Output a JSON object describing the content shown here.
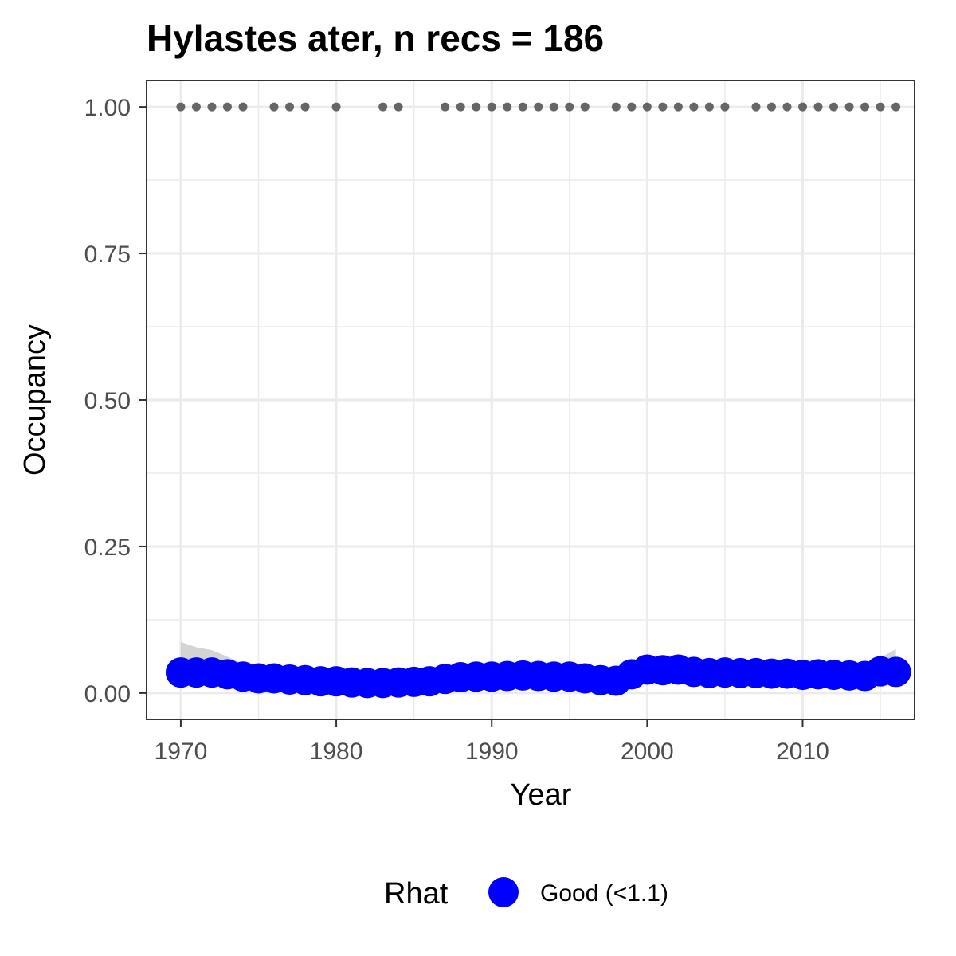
{
  "chart_data": {
    "type": "scatter",
    "title": "Hylastes ater, n recs = 186",
    "xlabel": "Year",
    "ylabel": "Occupancy",
    "xlim": [
      1967.8,
      2017.2
    ],
    "ylim": [
      -0.045,
      1.045
    ],
    "x_ticks": [
      1970,
      1980,
      1990,
      2000,
      2010
    ],
    "x_tick_labels": [
      "1970",
      "1980",
      "1990",
      "2000",
      "2010"
    ],
    "y_ticks": [
      0,
      0.25,
      0.5,
      0.75,
      1.0
    ],
    "y_tick_labels": [
      "0.00",
      "0.25",
      "0.50",
      "0.75",
      "1.00"
    ],
    "grid": true,
    "legend": {
      "position": "bottom",
      "title": "Rhat",
      "entries": [
        {
          "label": "Good (<1.1)",
          "color": "#0000ff"
        }
      ]
    },
    "colors": {
      "occupancy": "#0000ff",
      "records": "#666666",
      "ribbon": "#cccccc",
      "grid": "#ebebeb",
      "border": "#333333"
    },
    "series": [
      {
        "name": "Good (<1.1)",
        "x": [
          1970,
          1971,
          1972,
          1973,
          1974,
          1975,
          1976,
          1977,
          1978,
          1979,
          1980,
          1981,
          1982,
          1983,
          1984,
          1985,
          1986,
          1987,
          1988,
          1989,
          1990,
          1991,
          1992,
          1993,
          1994,
          1995,
          1996,
          1997,
          1998,
          1999,
          2000,
          2001,
          2002,
          2003,
          2004,
          2005,
          2006,
          2007,
          2008,
          2009,
          2010,
          2011,
          2012,
          2013,
          2014,
          2015,
          2016
        ],
        "y": [
          0.035,
          0.035,
          0.035,
          0.032,
          0.028,
          0.025,
          0.025,
          0.023,
          0.022,
          0.02,
          0.02,
          0.018,
          0.017,
          0.017,
          0.018,
          0.019,
          0.02,
          0.024,
          0.027,
          0.028,
          0.028,
          0.029,
          0.03,
          0.029,
          0.028,
          0.028,
          0.025,
          0.022,
          0.021,
          0.032,
          0.04,
          0.039,
          0.04,
          0.036,
          0.034,
          0.035,
          0.034,
          0.034,
          0.033,
          0.033,
          0.031,
          0.032,
          0.031,
          0.03,
          0.029,
          0.037,
          0.036
        ]
      }
    ],
    "ribbon": {
      "x": [
        1970,
        1971,
        1972,
        1973,
        1974,
        1975,
        1976,
        1977,
        1978,
        1979,
        1980,
        1981,
        1982,
        1983,
        1984,
        1985,
        1986,
        1987,
        1988,
        1989,
        1990,
        1991,
        1992,
        1993,
        1994,
        1995,
        1996,
        1997,
        1998,
        1999,
        2000,
        2001,
        2002,
        2003,
        2004,
        2005,
        2006,
        2007,
        2008,
        2009,
        2010,
        2011,
        2012,
        2013,
        2014,
        2015,
        2016
      ],
      "lower": [
        0.015,
        0.017,
        0.018,
        0.017,
        0.014,
        0.012,
        0.012,
        0.011,
        0.01,
        0.009,
        0.009,
        0.008,
        0.007,
        0.007,
        0.008,
        0.009,
        0.01,
        0.013,
        0.015,
        0.016,
        0.016,
        0.017,
        0.018,
        0.017,
        0.016,
        0.016,
        0.014,
        0.012,
        0.011,
        0.019,
        0.026,
        0.025,
        0.026,
        0.023,
        0.021,
        0.022,
        0.021,
        0.021,
        0.02,
        0.02,
        0.019,
        0.02,
        0.019,
        0.018,
        0.017,
        0.021,
        0.018
      ],
      "upper": [
        0.087,
        0.078,
        0.073,
        0.062,
        0.05,
        0.043,
        0.042,
        0.039,
        0.037,
        0.035,
        0.035,
        0.032,
        0.031,
        0.031,
        0.032,
        0.034,
        0.036,
        0.04,
        0.043,
        0.044,
        0.044,
        0.045,
        0.046,
        0.045,
        0.044,
        0.044,
        0.041,
        0.037,
        0.036,
        0.048,
        0.058,
        0.057,
        0.058,
        0.053,
        0.051,
        0.052,
        0.051,
        0.051,
        0.05,
        0.05,
        0.048,
        0.049,
        0.048,
        0.047,
        0.047,
        0.06,
        0.075
      ]
    },
    "records": {
      "x": [
        1970,
        1971,
        1972,
        1973,
        1974,
        1976,
        1977,
        1978,
        1980,
        1983,
        1984,
        1987,
        1988,
        1989,
        1990,
        1991,
        1992,
        1993,
        1994,
        1995,
        1996,
        1998,
        1999,
        2000,
        2001,
        2002,
        2003,
        2004,
        2005,
        2007,
        2008,
        2009,
        2010,
        2011,
        2012,
        2013,
        2014,
        2015,
        2016
      ],
      "y": 1.0
    }
  }
}
